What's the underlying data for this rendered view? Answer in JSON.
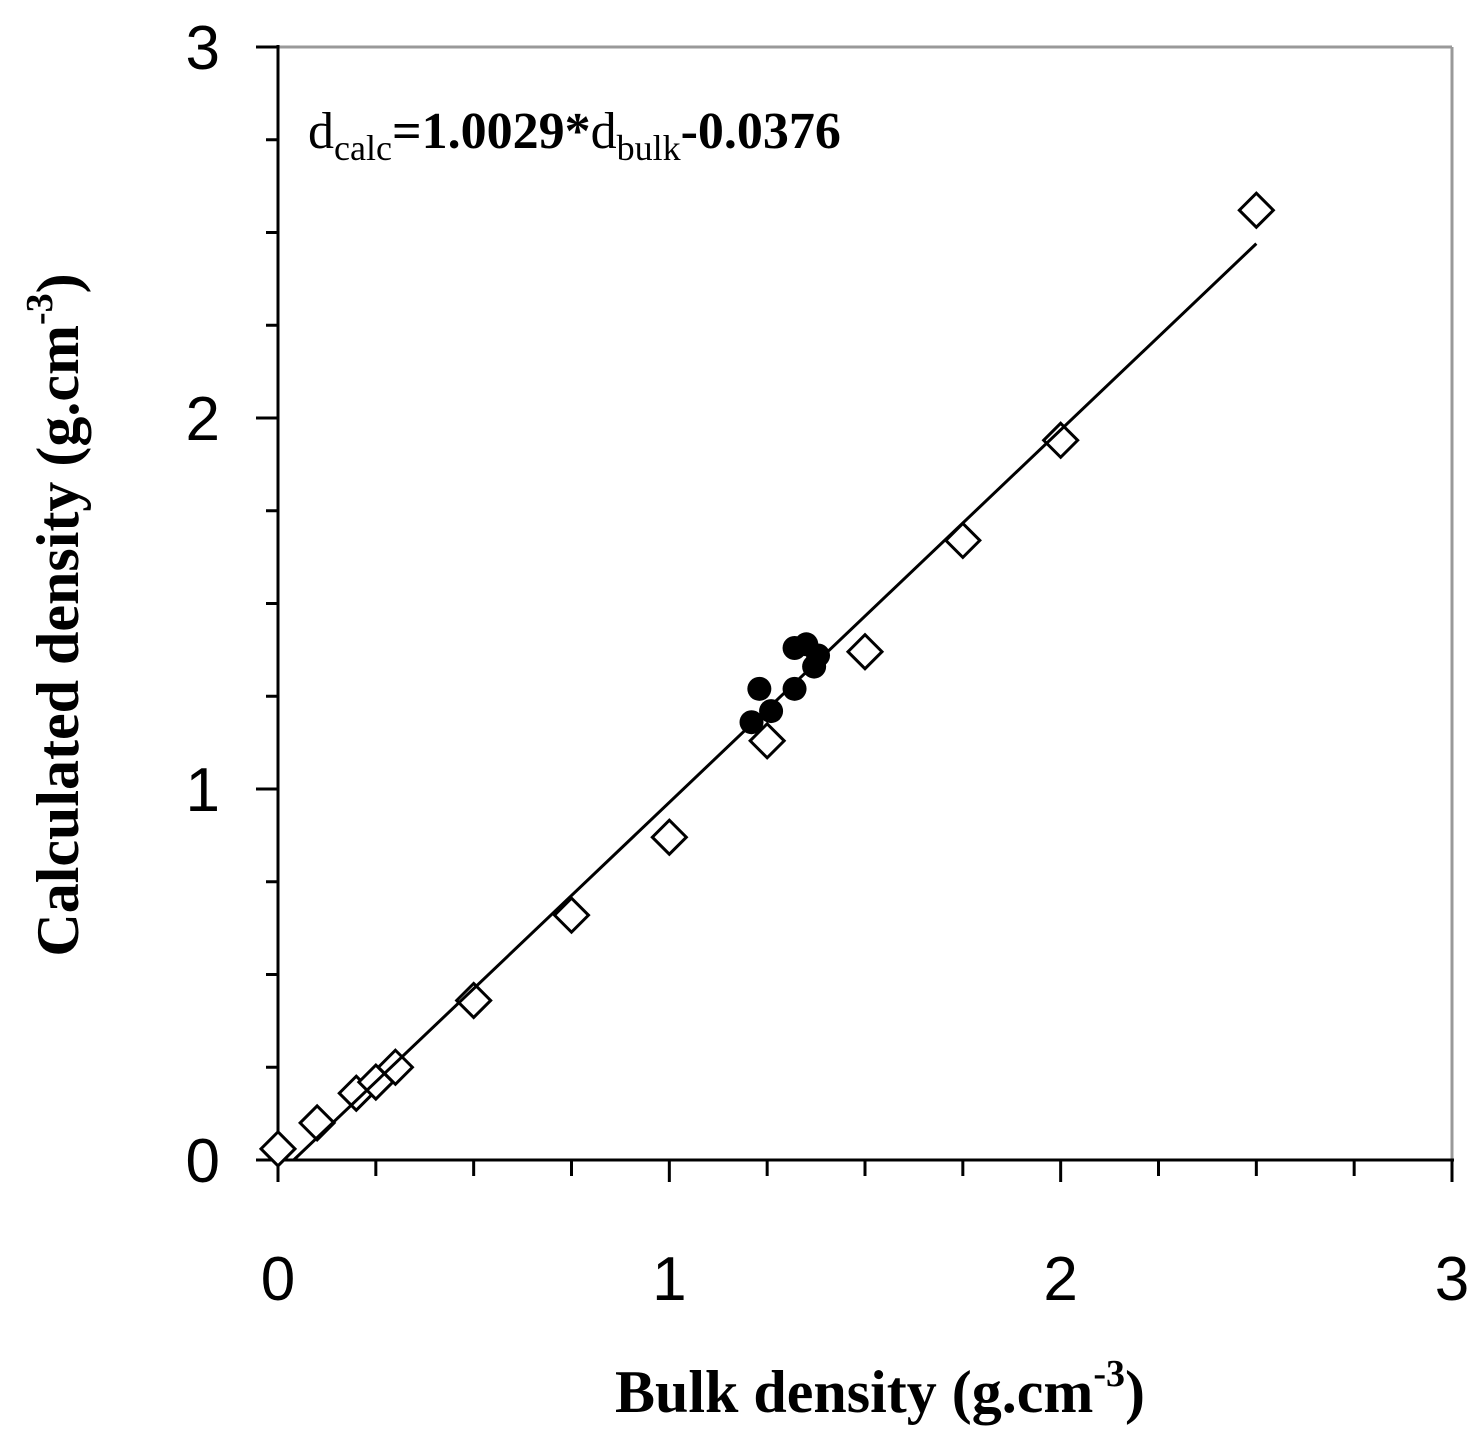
{
  "chart_data": {
    "type": "scatter",
    "xlabel": [
      "Bulk density (g.cm",
      "-3",
      ")"
    ],
    "ylabel": [
      "Calculated density (g.cm",
      "-3",
      ")"
    ],
    "annotation": [
      "d",
      "calc",
      "=1.0029*",
      "d",
      "bulk",
      "-0.0376"
    ],
    "xlim": [
      0,
      3
    ],
    "ylim": [
      0,
      3
    ],
    "xticks": [
      0,
      1,
      2,
      3
    ],
    "yticks": [
      0,
      1,
      2,
      3
    ],
    "xminor": [
      0.25,
      0.5,
      0.75,
      1.25,
      1.5,
      1.75,
      2.25,
      2.5,
      2.75
    ],
    "yminor": [
      0.25,
      0.5,
      0.75,
      1.25,
      1.5,
      1.75,
      2.25,
      2.5,
      2.75
    ],
    "series": [
      {
        "marker": "diamond",
        "color": "#000000",
        "x": [
          0,
          0.1,
          0.2,
          0.25,
          0.3,
          0.5,
          0.75,
          1.0,
          1.25,
          1.5,
          1.75,
          2.0,
          2.5
        ],
        "y": [
          0.03,
          0.1,
          0.18,
          0.21,
          0.25,
          0.43,
          0.66,
          0.87,
          1.13,
          1.37,
          1.67,
          1.94,
          2.56
        ]
      },
      {
        "marker": "circle",
        "color": "#000000",
        "x": [
          1.21,
          1.23,
          1.26,
          1.32,
          1.32,
          1.35,
          1.37,
          1.38
        ],
        "y": [
          1.18,
          1.27,
          1.21,
          1.27,
          1.38,
          1.39,
          1.33,
          1.36
        ]
      },
      {
        "marker": "line",
        "color": "#000000",
        "x": [
          0.04,
          2.5
        ],
        "y": [
          0,
          2.47
        ]
      }
    ]
  }
}
